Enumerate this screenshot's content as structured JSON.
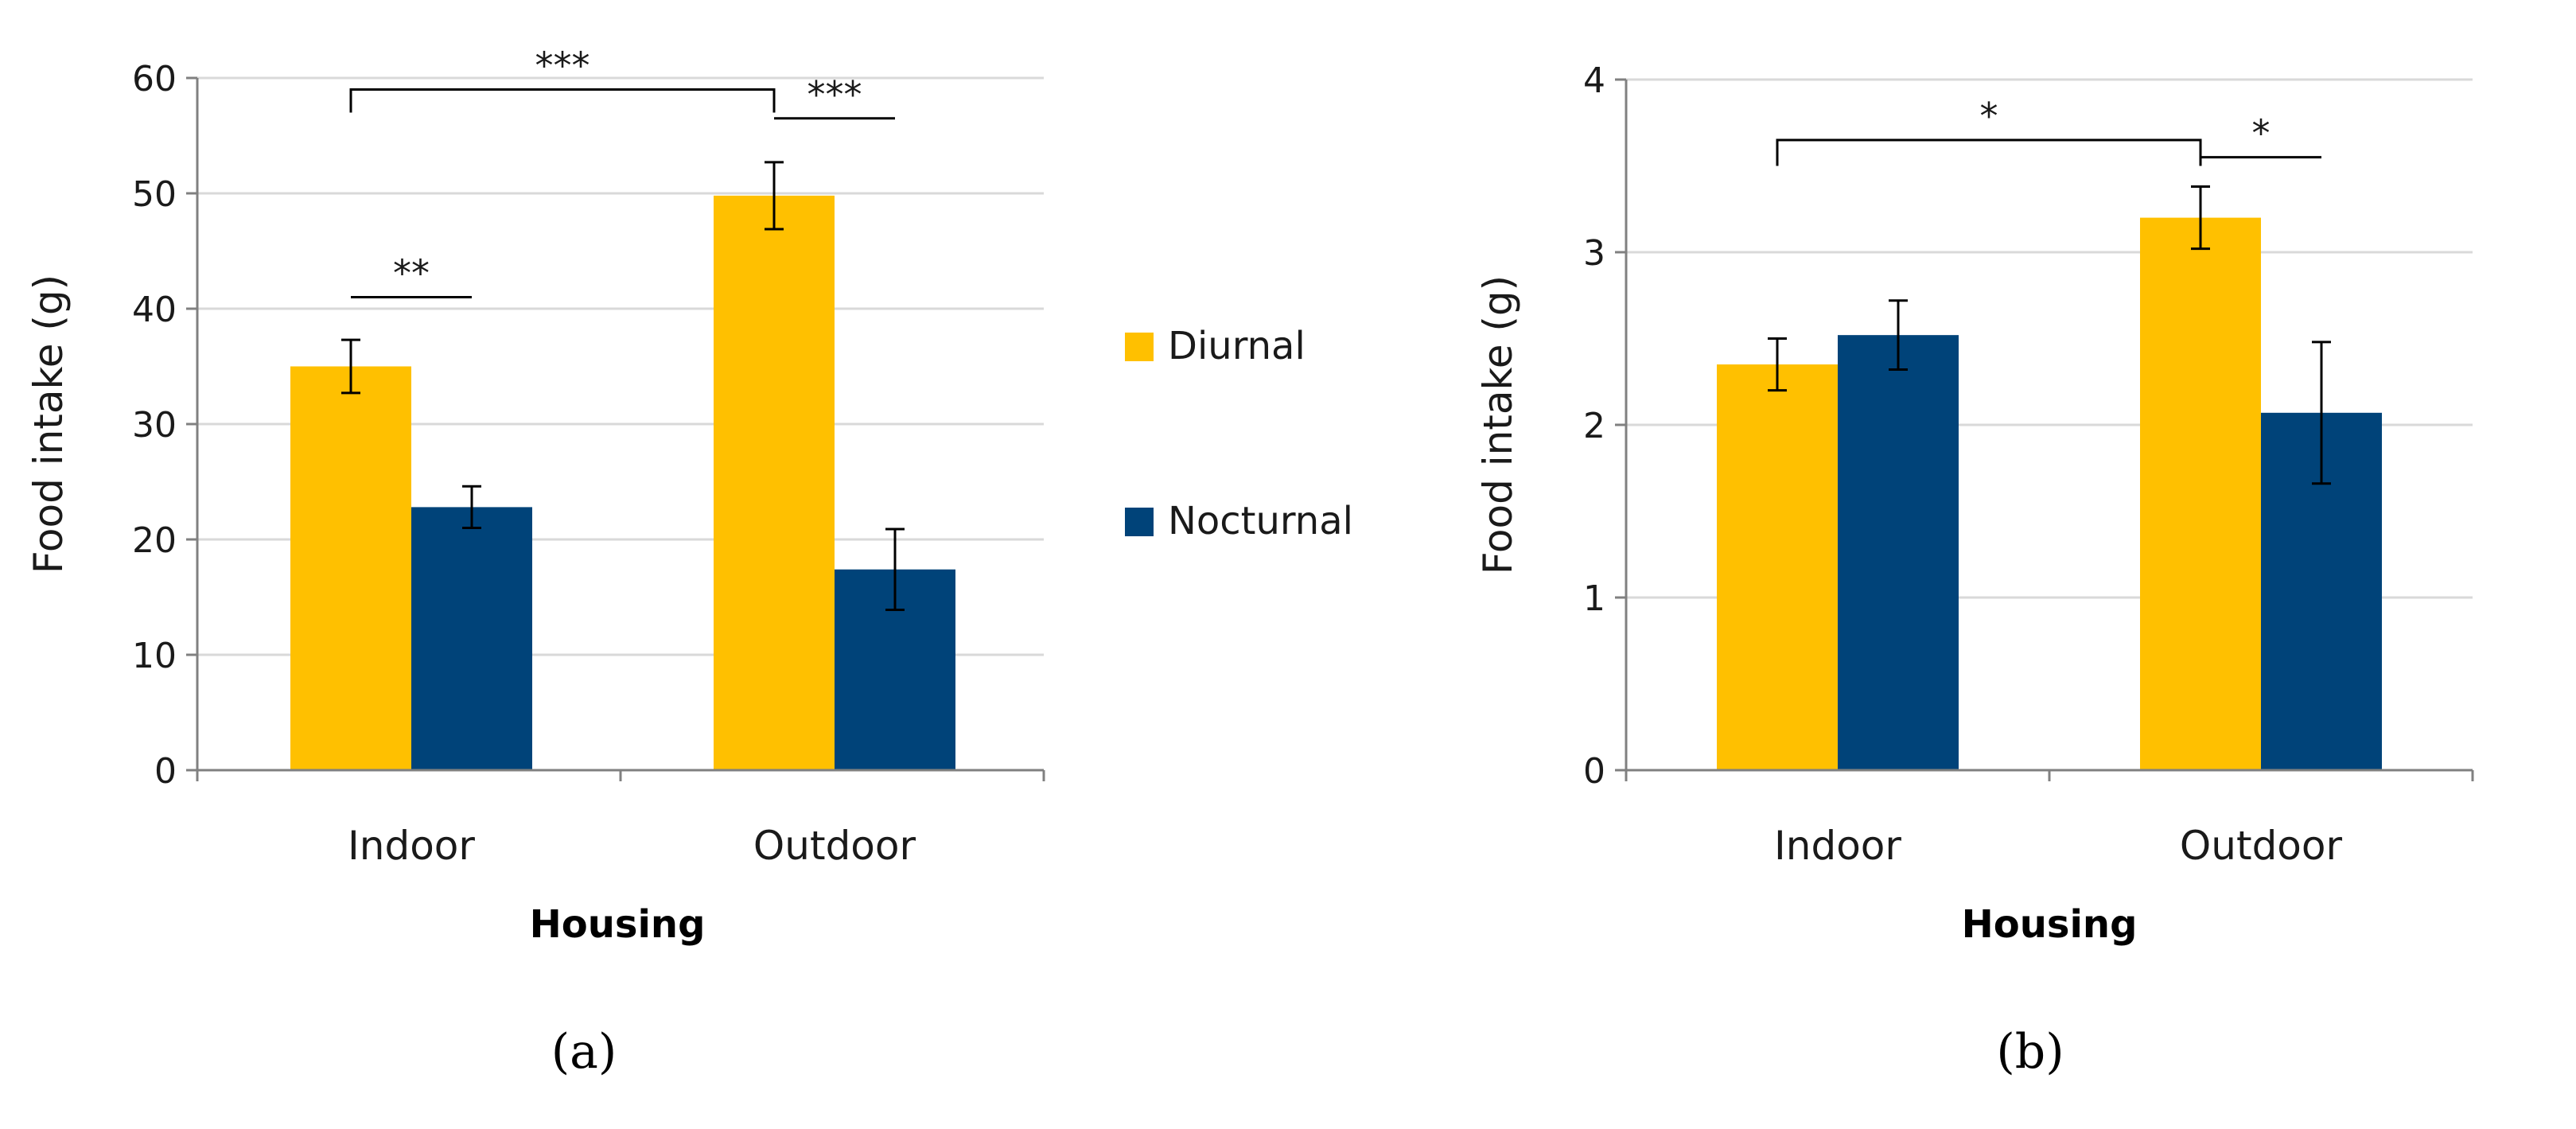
{
  "colors": {
    "diurnal": "#FFC000",
    "nocturnal": "#004379",
    "grid": "#d9d9d9",
    "axis": "#808080",
    "ink": "#000000"
  },
  "legend": {
    "position": "center-between-panels",
    "items": [
      {
        "label": "Diurnal",
        "color_key": "diurnal"
      },
      {
        "label": "Nocturnal",
        "color_key": "nocturnal"
      }
    ]
  },
  "chart_data": [
    {
      "type": "bar",
      "panel_label": "(a)",
      "title": "",
      "xlabel": "Housing",
      "ylabel": "Food intake (g)",
      "ylim": [
        0,
        60
      ],
      "yticks": [
        0,
        10,
        20,
        30,
        40,
        50,
        60
      ],
      "grid": true,
      "categories": [
        "Indoor",
        "Outdoor"
      ],
      "series": [
        {
          "name": "Diurnal",
          "values": [
            35,
            49.8
          ],
          "errors": [
            2.3,
            2.9
          ]
        },
        {
          "name": "Nocturnal",
          "values": [
            22.8,
            17.4
          ],
          "errors": [
            1.8,
            3.5
          ]
        }
      ],
      "significance": [
        {
          "label": "**",
          "type": "within",
          "category": 0,
          "series": [
            0,
            1
          ],
          "level": 41
        },
        {
          "label": "***",
          "type": "between",
          "from": [
            0,
            0
          ],
          "to": [
            1,
            0
          ],
          "level": 59,
          "drop_to": 57
        },
        {
          "label": "***",
          "type": "within",
          "category": 1,
          "series": [
            0,
            1
          ],
          "level": 56.5
        }
      ]
    },
    {
      "type": "bar",
      "panel_label": "(b)",
      "title": "",
      "xlabel": "Housing",
      "ylabel": "Food intake (g)",
      "ylim": [
        0,
        4
      ],
      "yticks": [
        0,
        1,
        2,
        3,
        4
      ],
      "grid": true,
      "categories": [
        "Indoor",
        "Outdoor"
      ],
      "series": [
        {
          "name": "Diurnal",
          "values": [
            2.35,
            3.2
          ],
          "errors": [
            0.15,
            0.18
          ]
        },
        {
          "name": "Nocturnal",
          "values": [
            2.52,
            2.07
          ],
          "errors": [
            0.2,
            0.41
          ]
        }
      ],
      "significance": [
        {
          "label": "*",
          "type": "between",
          "from": [
            0,
            0
          ],
          "to": [
            1,
            0
          ],
          "level": 3.65,
          "drop_to": 3.5
        },
        {
          "label": "*",
          "type": "within",
          "category": 1,
          "series": [
            0,
            1
          ],
          "level": 3.55
        }
      ]
    }
  ]
}
